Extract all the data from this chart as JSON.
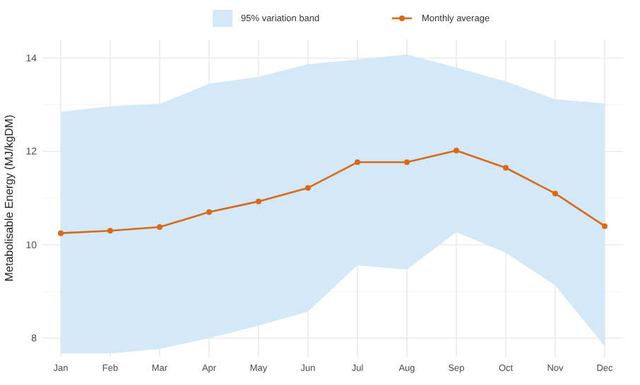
{
  "chart_data": {
    "type": "line",
    "ylabel": "Metabolisable Energy (MJ/kgDM)",
    "categories": [
      "Jan",
      "Feb",
      "Mar",
      "Apr",
      "May",
      "Jun",
      "Jul",
      "Aug",
      "Sep",
      "Oct",
      "Nov",
      "Dec"
    ],
    "series": [
      {
        "name": "Monthly average",
        "color": "#d9691a",
        "marker": "circle",
        "values": [
          10.25,
          10.3,
          10.38,
          10.7,
          10.93,
          11.22,
          11.77,
          11.77,
          12.02,
          11.65,
          11.1,
          10.4
        ],
        "lower": [
          7.67,
          7.67,
          7.77,
          8.0,
          8.27,
          8.57,
          9.56,
          9.47,
          10.27,
          9.83,
          9.13,
          7.83
        ],
        "upper": [
          12.85,
          12.97,
          13.02,
          13.45,
          13.6,
          13.87,
          13.97,
          14.08,
          13.8,
          13.5,
          13.12,
          13.03
        ]
      }
    ],
    "annotations": [
      "95% variation band"
    ],
    "ylim": [
      7.6,
      14.4
    ],
    "yticks": [
      8,
      {
        "value": 9,
        "label": null
      },
      10,
      {
        "value": 11,
        "label": null
      },
      12,
      {
        "value": 13,
        "label": null
      },
      14
    ],
    "grid": true,
    "legend": "top",
    "line_style": "solid"
  }
}
